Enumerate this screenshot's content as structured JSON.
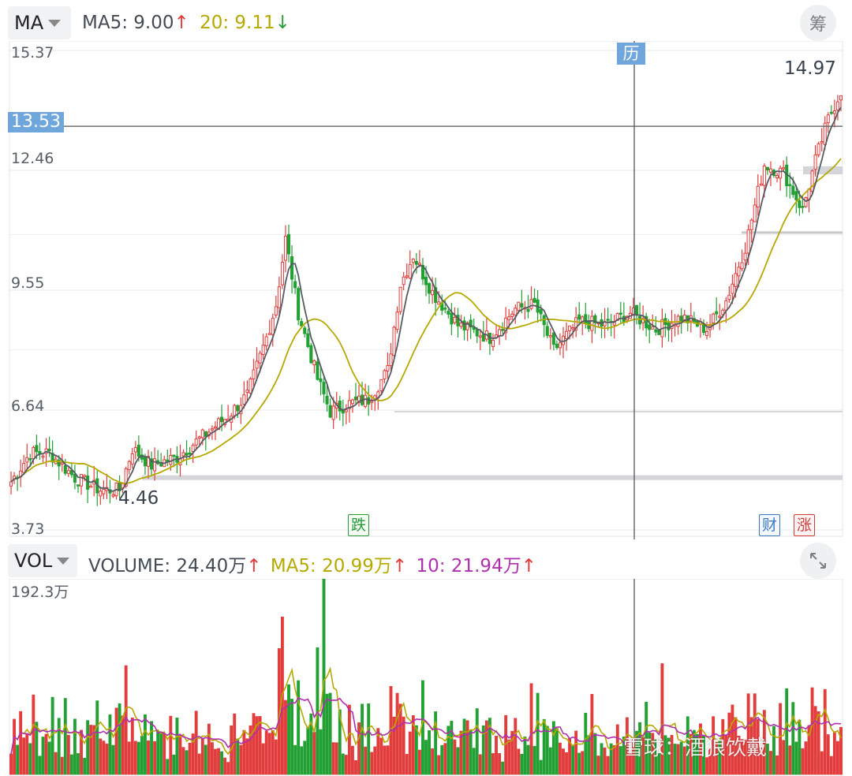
{
  "price_panel": {
    "indicator_label": "MA",
    "legend": [
      {
        "label": "MA5: 9.00",
        "arrow": "↑",
        "color": "#444b55",
        "arrow_color": "#e03a3a"
      },
      {
        "label": "20: 9.11",
        "arrow": "↓",
        "color": "#b5a900",
        "arrow_color": "#2a9a3a"
      }
    ],
    "top_right_icon": "筹",
    "y_ticks": [
      "15.37",
      "12.46",
      "9.55",
      "6.64",
      "3.73"
    ],
    "crosshair_value": "13.53",
    "high_label": "14.97",
    "low_label": "4.46",
    "markers": {
      "top": "历",
      "drop": "跌",
      "finance": "财",
      "limit_up": "涨"
    }
  },
  "volume_panel": {
    "indicator_label": "VOL",
    "legend": [
      {
        "label": "VOLUME: 24.40万",
        "arrow": "↑",
        "color": "#444b55"
      },
      {
        "label": "MA5: 20.99万",
        "arrow": "↑",
        "color": "#b5a900"
      },
      {
        "label": "10: 21.94万",
        "arrow": "↑",
        "color": "#b02fb0"
      }
    ],
    "max_label": "192.3万",
    "expand_icon": "expand-icon"
  },
  "watermark": "雪球：酒狼饮戴",
  "chart_data": [
    {
      "type": "candlestick",
      "ylim": [
        3.73,
        15.37
      ],
      "y_ticks": [
        15.37,
        12.46,
        9.55,
        6.64,
        3.73
      ],
      "grid": true,
      "crosshair": 13.53,
      "max_high": 14.97,
      "min_low": 4.46,
      "close_anchors": [
        [
          0,
          4.9
        ],
        [
          6,
          5.6
        ],
        [
          12,
          5.6
        ],
        [
          20,
          5.0
        ],
        [
          28,
          4.7
        ],
        [
          34,
          4.7
        ],
        [
          38,
          5.7
        ],
        [
          44,
          5.3
        ],
        [
          52,
          5.5
        ],
        [
          60,
          6.0
        ],
        [
          68,
          6.5
        ],
        [
          74,
          7.0
        ],
        [
          80,
          8.4
        ],
        [
          83,
          9.2
        ],
        [
          86,
          10.8
        ],
        [
          90,
          9.0
        ],
        [
          96,
          7.4
        ],
        [
          100,
          6.6
        ],
        [
          106,
          6.8
        ],
        [
          112,
          6.9
        ],
        [
          118,
          7.6
        ],
        [
          122,
          9.7
        ],
        [
          126,
          10.4
        ],
        [
          132,
          9.5
        ],
        [
          140,
          8.7
        ],
        [
          150,
          8.4
        ],
        [
          158,
          9.1
        ],
        [
          164,
          9.2
        ],
        [
          170,
          8.1
        ],
        [
          178,
          8.8
        ],
        [
          186,
          8.7
        ],
        [
          194,
          9.0
        ],
        [
          202,
          8.6
        ],
        [
          210,
          8.9
        ],
        [
          218,
          8.6
        ],
        [
          224,
          9.3
        ],
        [
          230,
          10.6
        ],
        [
          236,
          12.6
        ],
        [
          242,
          12.4
        ],
        [
          248,
          11.5
        ],
        [
          252,
          12.7
        ],
        [
          256,
          13.7
        ],
        [
          260,
          14.4
        ]
      ],
      "series": [
        {
          "name": "MA5",
          "value": 9.0,
          "color": "#555b63"
        },
        {
          "name": "20",
          "value": 9.11,
          "color": "#b5a900"
        }
      ]
    },
    {
      "type": "bar",
      "ylim": [
        0,
        192.3
      ],
      "unit": "万",
      "volume_last": 24.4,
      "series": [
        {
          "name": "MA5",
          "value": 20.99,
          "color": "#b5a900"
        },
        {
          "name": "10",
          "value": 21.94,
          "color": "#b02fb0"
        }
      ]
    }
  ]
}
